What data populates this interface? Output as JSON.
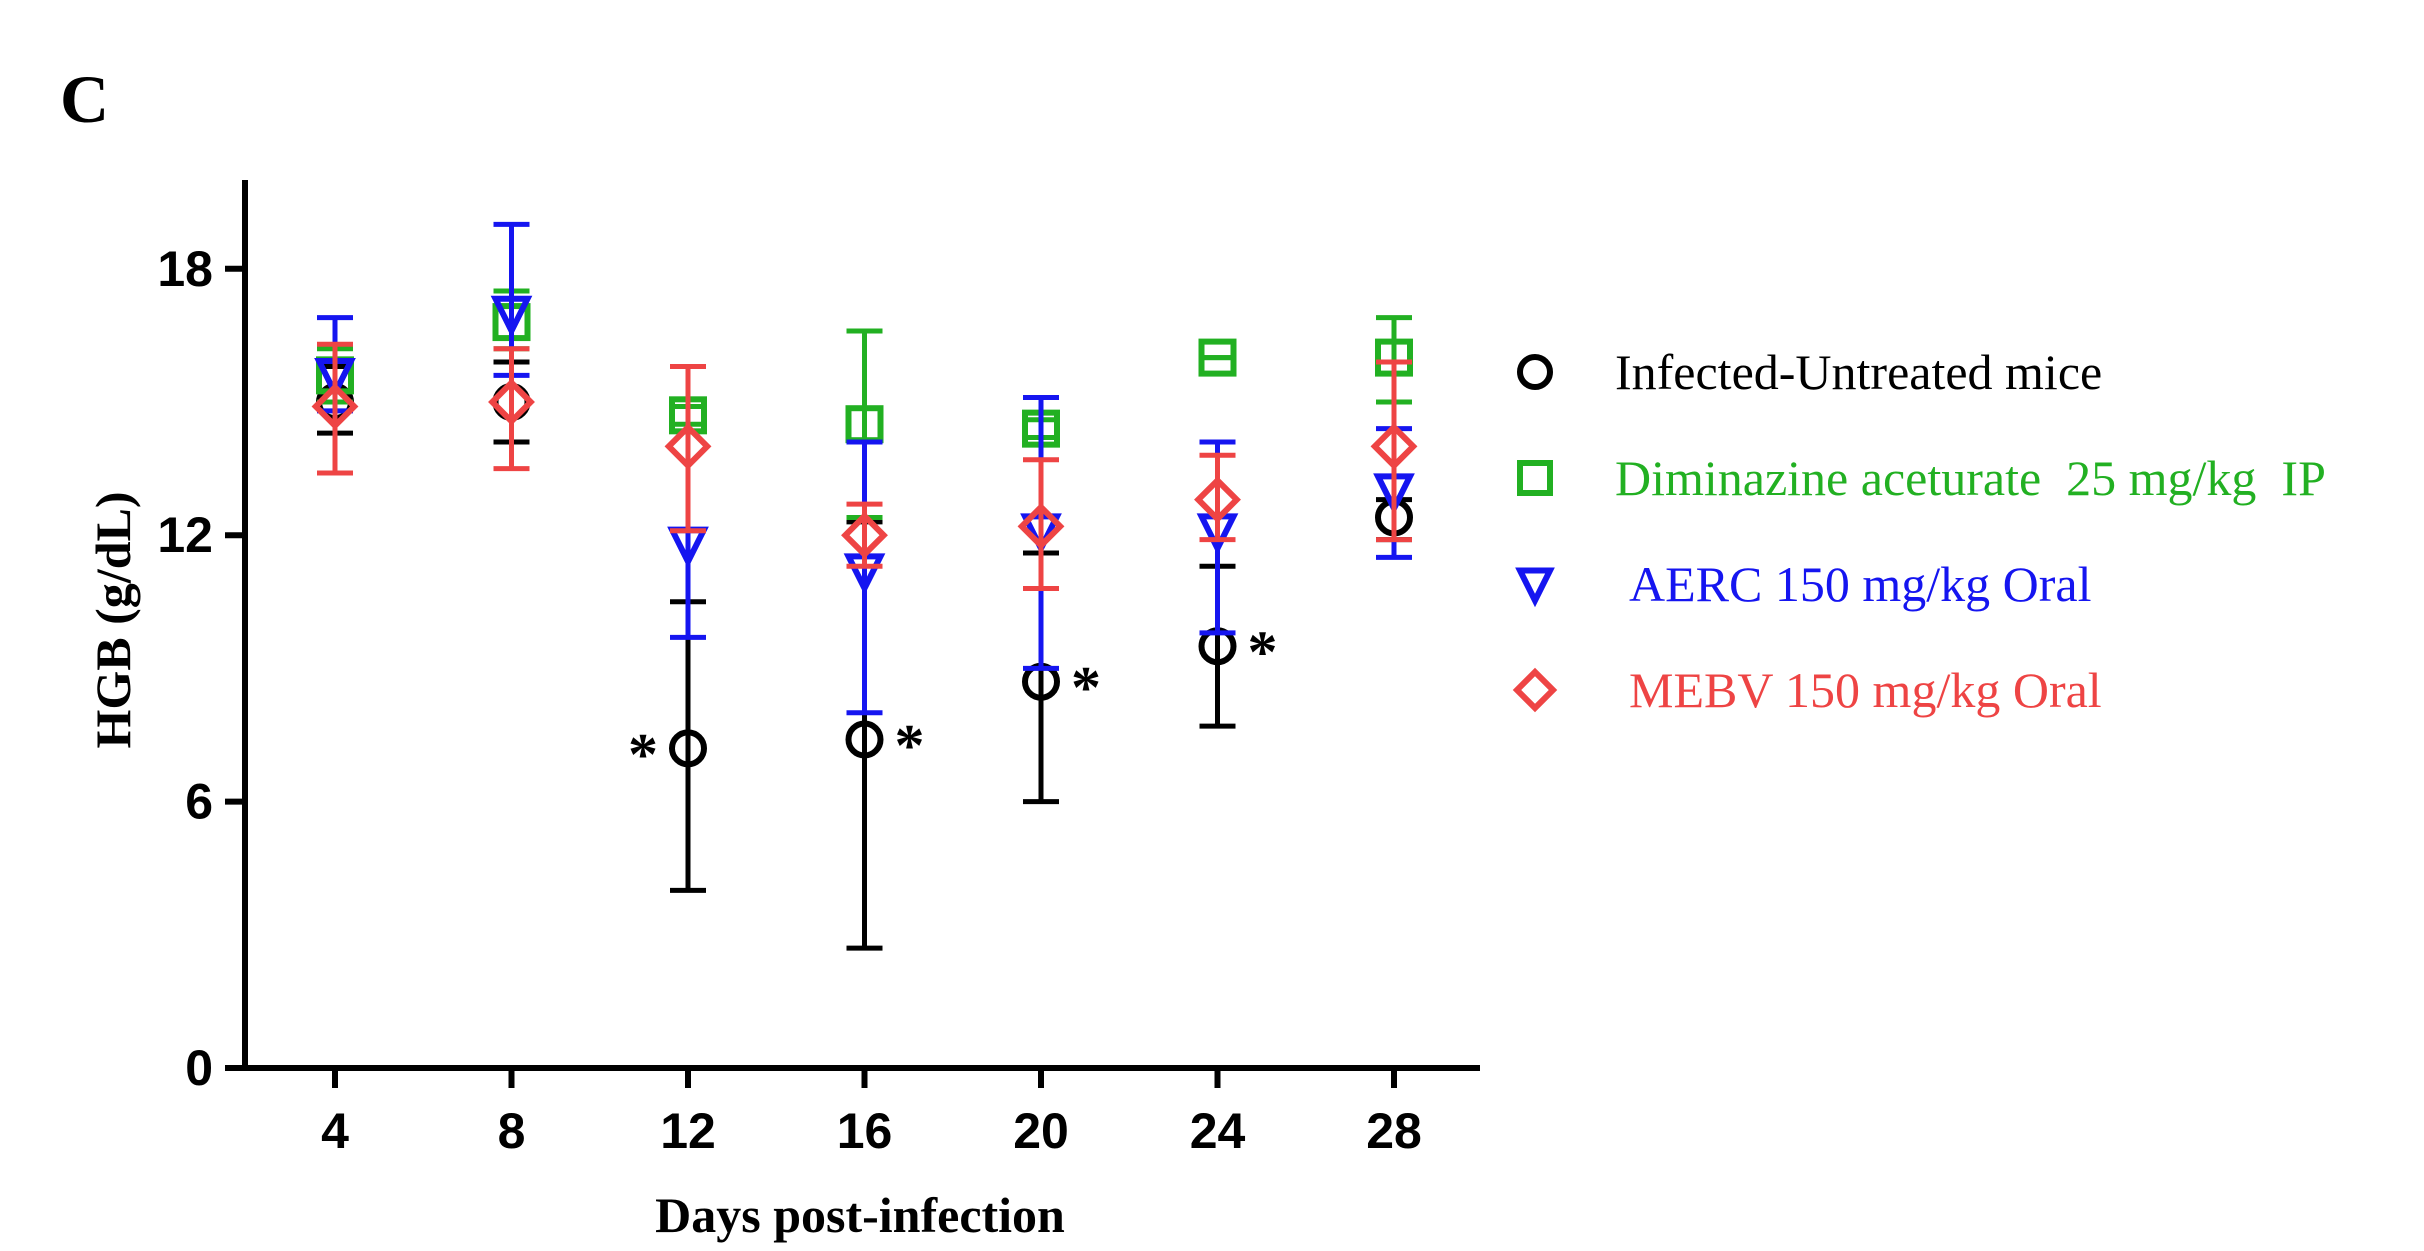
{
  "panel_label": "C",
  "chart_data": {
    "type": "scatter",
    "title": "",
    "xlabel": "Days post-infection",
    "ylabel": "HGB (g/dL)",
    "x": [
      4,
      8,
      12,
      16,
      20,
      24,
      28
    ],
    "x_tick_labels": [
      "4",
      "8",
      "12",
      "16",
      "20",
      "24",
      "28"
    ],
    "ylim": [
      0,
      20
    ],
    "y_ticks": [
      0,
      6,
      12,
      18
    ],
    "y_tick_labels": [
      "0",
      "6",
      "12",
      "18"
    ],
    "legend_position": "right",
    "series": [
      {
        "name": "Infected-Untreated mice",
        "color": "#000000",
        "marker": "circle",
        "values": [
          15.0,
          15.0,
          7.2,
          7.4,
          8.7,
          9.5,
          12.4
        ],
        "err_low": [
          14.3,
          14.1,
          4.0,
          2.7,
          6.0,
          7.7,
          11.9
        ],
        "err_high": [
          15.8,
          15.9,
          10.5,
          12.3,
          11.6,
          11.3,
          12.8
        ],
        "annotations": [
          "",
          "",
          "*",
          "*",
          "*",
          "*",
          ""
        ],
        "annotation_side": [
          "",
          "",
          "left",
          "right",
          "right",
          "right",
          ""
        ]
      },
      {
        "name": "Diminazine aceturate  25 mg/kg  IP",
        "color": "#22b022",
        "marker": "square",
        "values": [
          15.6,
          16.8,
          14.7,
          14.5,
          14.4,
          16.0,
          16.0
        ],
        "err_low": [
          15.0,
          16.2,
          14.5,
          12.4,
          14.2,
          16.0,
          15.0
        ],
        "err_high": [
          16.2,
          17.5,
          14.9,
          16.6,
          14.6,
          16.0,
          16.9
        ],
        "annotations": [],
        "annotation_side": []
      },
      {
        "name": "AERC 150 mg/kg Oral",
        "color": "#1515f0",
        "marker": "triangle-down",
        "values": [
          15.6,
          17.0,
          11.8,
          11.2,
          12.1,
          12.1,
          13.0
        ],
        "err_low": [
          14.8,
          15.6,
          9.7,
          8.0,
          9.0,
          9.8,
          11.5
        ],
        "err_high": [
          16.9,
          19.0,
          12.1,
          14.1,
          15.1,
          14.1,
          14.4
        ],
        "annotations": [],
        "annotation_side": []
      },
      {
        "name": "MEBV 150 mg/kg Oral",
        "color": "#ee4444",
        "marker": "diamond",
        "values": [
          14.9,
          15.0,
          14.0,
          12.0,
          12.2,
          12.8,
          14.0
        ],
        "err_low": [
          13.4,
          13.5,
          12.1,
          11.3,
          10.8,
          11.9,
          11.9
        ],
        "err_high": [
          16.3,
          16.2,
          15.8,
          12.7,
          13.7,
          13.8,
          15.9
        ],
        "annotations": [],
        "annotation_side": []
      }
    ]
  }
}
